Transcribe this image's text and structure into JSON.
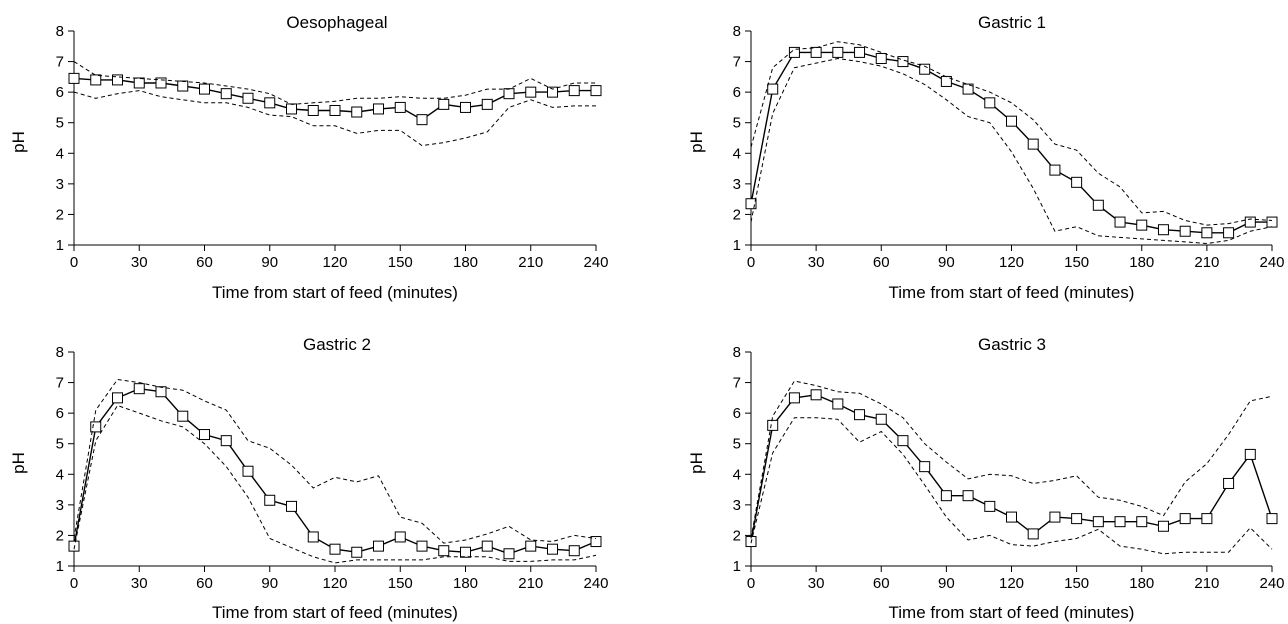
{
  "chart_data": [
    {
      "type": "line",
      "title": "Oesophageal",
      "xlabel": "Time from start of feed (minutes)",
      "ylabel": "pH",
      "xlim": [
        0,
        240
      ],
      "ylim": [
        1,
        8
      ],
      "xticks": [
        0,
        30,
        60,
        90,
        120,
        150,
        180,
        210,
        240
      ],
      "yticks": [
        1,
        2,
        3,
        4,
        5,
        6,
        7,
        8
      ],
      "x": [
        0,
        10,
        20,
        30,
        40,
        50,
        60,
        70,
        80,
        90,
        100,
        110,
        120,
        130,
        140,
        150,
        160,
        170,
        180,
        190,
        200,
        210,
        220,
        230,
        240
      ],
      "series": [
        {
          "style": "solid-square-markers",
          "values": [
            6.45,
            6.4,
            6.4,
            6.3,
            6.3,
            6.2,
            6.1,
            5.95,
            5.8,
            5.65,
            5.45,
            5.4,
            5.4,
            5.35,
            5.45,
            5.5,
            5.1,
            5.6,
            5.5,
            5.6,
            5.95,
            6.0,
            6.0,
            6.05,
            6.05
          ]
        },
        {
          "style": "dashed",
          "values": [
            7.0,
            6.55,
            6.5,
            6.45,
            6.4,
            6.35,
            6.3,
            6.2,
            6.1,
            5.95,
            5.6,
            5.65,
            5.7,
            5.8,
            5.8,
            5.85,
            5.8,
            5.8,
            5.9,
            6.1,
            6.1,
            6.45,
            6.1,
            6.3,
            6.3
          ]
        },
        {
          "style": "dashed",
          "values": [
            6.0,
            5.8,
            5.95,
            6.05,
            5.85,
            5.75,
            5.65,
            5.65,
            5.5,
            5.25,
            5.2,
            4.9,
            4.9,
            4.65,
            4.75,
            4.75,
            4.25,
            4.35,
            4.5,
            4.7,
            5.5,
            5.75,
            5.5,
            5.55,
            5.55
          ]
        }
      ]
    },
    {
      "type": "line",
      "title": "Gastric 1",
      "xlabel": "Time from start of feed (minutes)",
      "ylabel": "pH",
      "xlim": [
        0,
        240
      ],
      "ylim": [
        1,
        8
      ],
      "xticks": [
        0,
        30,
        60,
        90,
        120,
        150,
        180,
        210,
        240
      ],
      "yticks": [
        1,
        2,
        3,
        4,
        5,
        6,
        7,
        8
      ],
      "x": [
        0,
        10,
        20,
        30,
        40,
        50,
        60,
        70,
        80,
        90,
        100,
        110,
        120,
        130,
        140,
        150,
        160,
        170,
        180,
        190,
        200,
        210,
        220,
        230,
        240
      ],
      "series": [
        {
          "style": "solid-square-markers",
          "values": [
            2.35,
            6.1,
            7.3,
            7.3,
            7.3,
            7.3,
            7.1,
            7.0,
            6.75,
            6.35,
            6.1,
            5.65,
            5.05,
            4.3,
            3.45,
            3.05,
            2.3,
            1.75,
            1.65,
            1.5,
            1.45,
            1.4,
            1.4,
            1.75,
            1.75
          ]
        },
        {
          "style": "dashed",
          "values": [
            4.2,
            6.8,
            7.4,
            7.45,
            7.65,
            7.55,
            7.3,
            7.05,
            6.85,
            6.5,
            6.25,
            6.0,
            5.65,
            5.1,
            4.3,
            4.1,
            3.35,
            2.9,
            2.05,
            2.1,
            1.8,
            1.65,
            1.7,
            1.85,
            1.8
          ]
        },
        {
          "style": "dashed",
          "values": [
            1.75,
            5.3,
            6.8,
            6.95,
            7.1,
            7.0,
            6.85,
            6.6,
            6.25,
            5.75,
            5.2,
            5.0,
            4.05,
            2.85,
            1.45,
            1.6,
            1.3,
            1.25,
            1.2,
            1.15,
            1.1,
            1.05,
            1.15,
            1.45,
            1.6
          ]
        }
      ]
    },
    {
      "type": "line",
      "title": "Gastric 2",
      "xlabel": "Time from start of feed (minutes)",
      "ylabel": "pH",
      "xlim": [
        0,
        240
      ],
      "ylim": [
        1,
        8
      ],
      "xticks": [
        0,
        30,
        60,
        90,
        120,
        150,
        180,
        210,
        240
      ],
      "yticks": [
        1,
        2,
        3,
        4,
        5,
        6,
        7,
        8
      ],
      "x": [
        0,
        10,
        20,
        30,
        40,
        50,
        60,
        70,
        80,
        90,
        100,
        110,
        120,
        130,
        140,
        150,
        160,
        170,
        180,
        190,
        200,
        210,
        220,
        230,
        240
      ],
      "series": [
        {
          "style": "solid-square-markers",
          "values": [
            1.65,
            5.55,
            6.5,
            6.8,
            6.7,
            5.9,
            5.3,
            5.1,
            4.1,
            3.15,
            2.95,
            1.95,
            1.55,
            1.45,
            1.65,
            1.95,
            1.65,
            1.5,
            1.45,
            1.65,
            1.4,
            1.65,
            1.55,
            1.5,
            1.8
          ]
        },
        {
          "style": "dashed",
          "values": [
            1.9,
            6.1,
            7.1,
            7.0,
            6.85,
            6.75,
            6.4,
            6.1,
            5.1,
            4.85,
            4.3,
            3.55,
            3.9,
            3.75,
            3.95,
            2.6,
            2.4,
            1.75,
            1.85,
            2.05,
            2.3,
            1.85,
            1.8,
            2.0,
            1.9
          ]
        },
        {
          "style": "dashed",
          "values": [
            1.55,
            5.1,
            6.25,
            6.0,
            5.75,
            5.55,
            5.0,
            4.25,
            3.25,
            1.9,
            1.6,
            1.3,
            1.1,
            1.2,
            1.2,
            1.2,
            1.2,
            1.3,
            1.3,
            1.3,
            1.15,
            1.15,
            1.2,
            1.2,
            1.35
          ]
        }
      ]
    },
    {
      "type": "line",
      "title": "Gastric 3",
      "xlabel": "Time from start of feed (minutes)",
      "ylabel": "pH",
      "xlim": [
        0,
        240
      ],
      "ylim": [
        1,
        8
      ],
      "xticks": [
        0,
        30,
        60,
        90,
        120,
        150,
        180,
        210,
        240
      ],
      "yticks": [
        1,
        2,
        3,
        4,
        5,
        6,
        7,
        8
      ],
      "x": [
        0,
        10,
        20,
        30,
        40,
        50,
        60,
        70,
        80,
        90,
        100,
        110,
        120,
        130,
        140,
        150,
        160,
        170,
        180,
        190,
        200,
        210,
        220,
        230,
        240
      ],
      "series": [
        {
          "style": "solid-square-markers",
          "values": [
            1.8,
            5.6,
            6.5,
            6.6,
            6.3,
            5.95,
            5.8,
            5.1,
            4.25,
            3.3,
            3.3,
            2.95,
            2.6,
            2.05,
            2.6,
            2.55,
            2.45,
            2.45,
            2.45,
            2.3,
            2.55,
            2.55,
            3.7,
            4.65,
            2.55
          ]
        },
        {
          "style": "dashed",
          "values": [
            1.9,
            5.9,
            7.05,
            6.9,
            6.7,
            6.65,
            6.3,
            5.85,
            5.0,
            4.4,
            3.85,
            4.0,
            3.95,
            3.7,
            3.8,
            3.95,
            3.25,
            3.15,
            2.95,
            2.65,
            3.75,
            4.35,
            5.3,
            6.4,
            6.55
          ]
        },
        {
          "style": "dashed",
          "values": [
            1.75,
            4.7,
            5.85,
            5.85,
            5.8,
            5.05,
            5.4,
            4.65,
            3.65,
            2.6,
            1.85,
            2.0,
            1.7,
            1.65,
            1.8,
            1.9,
            2.2,
            1.65,
            1.55,
            1.4,
            1.45,
            1.45,
            1.45,
            2.25,
            1.55
          ]
        }
      ]
    }
  ]
}
